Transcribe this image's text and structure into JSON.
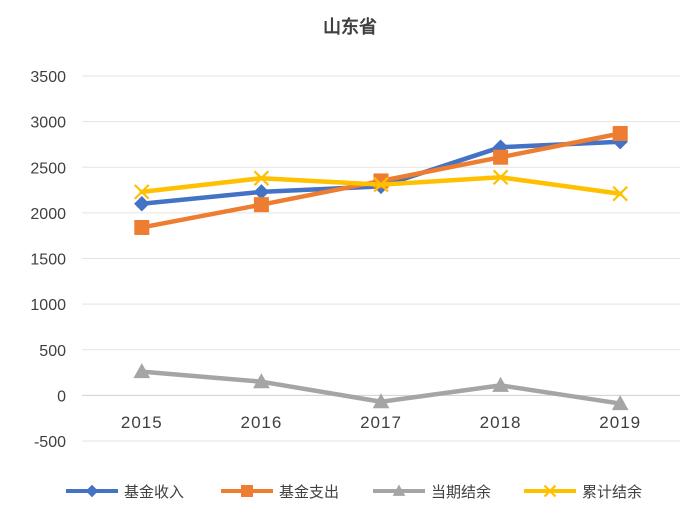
{
  "chart_data": {
    "type": "line",
    "title": "山东省",
    "categories": [
      "2015",
      "2016",
      "2017",
      "2018",
      "2019"
    ],
    "ylim": [
      -500,
      3500
    ],
    "yticks": [
      3500,
      3000,
      2500,
      2000,
      1500,
      1000,
      500,
      0,
      -500
    ],
    "grid": true,
    "legend_position": "bottom",
    "series": [
      {
        "name": "基金收入",
        "values": [
          2100,
          2230,
          2290,
          2720,
          2780
        ],
        "color": "#4472C4",
        "marker": "diamond"
      },
      {
        "name": "基金支出",
        "values": [
          1840,
          2090,
          2350,
          2610,
          2870
        ],
        "color": "#ED7D31",
        "marker": "square"
      },
      {
        "name": "当期结余",
        "values": [
          260,
          150,
          -70,
          110,
          -90
        ],
        "color": "#A5A5A5",
        "marker": "triangle"
      },
      {
        "name": "累计结余",
        "values": [
          2230,
          2380,
          2310,
          2390,
          2210
        ],
        "color": "#FFC000",
        "marker": "x"
      }
    ]
  }
}
